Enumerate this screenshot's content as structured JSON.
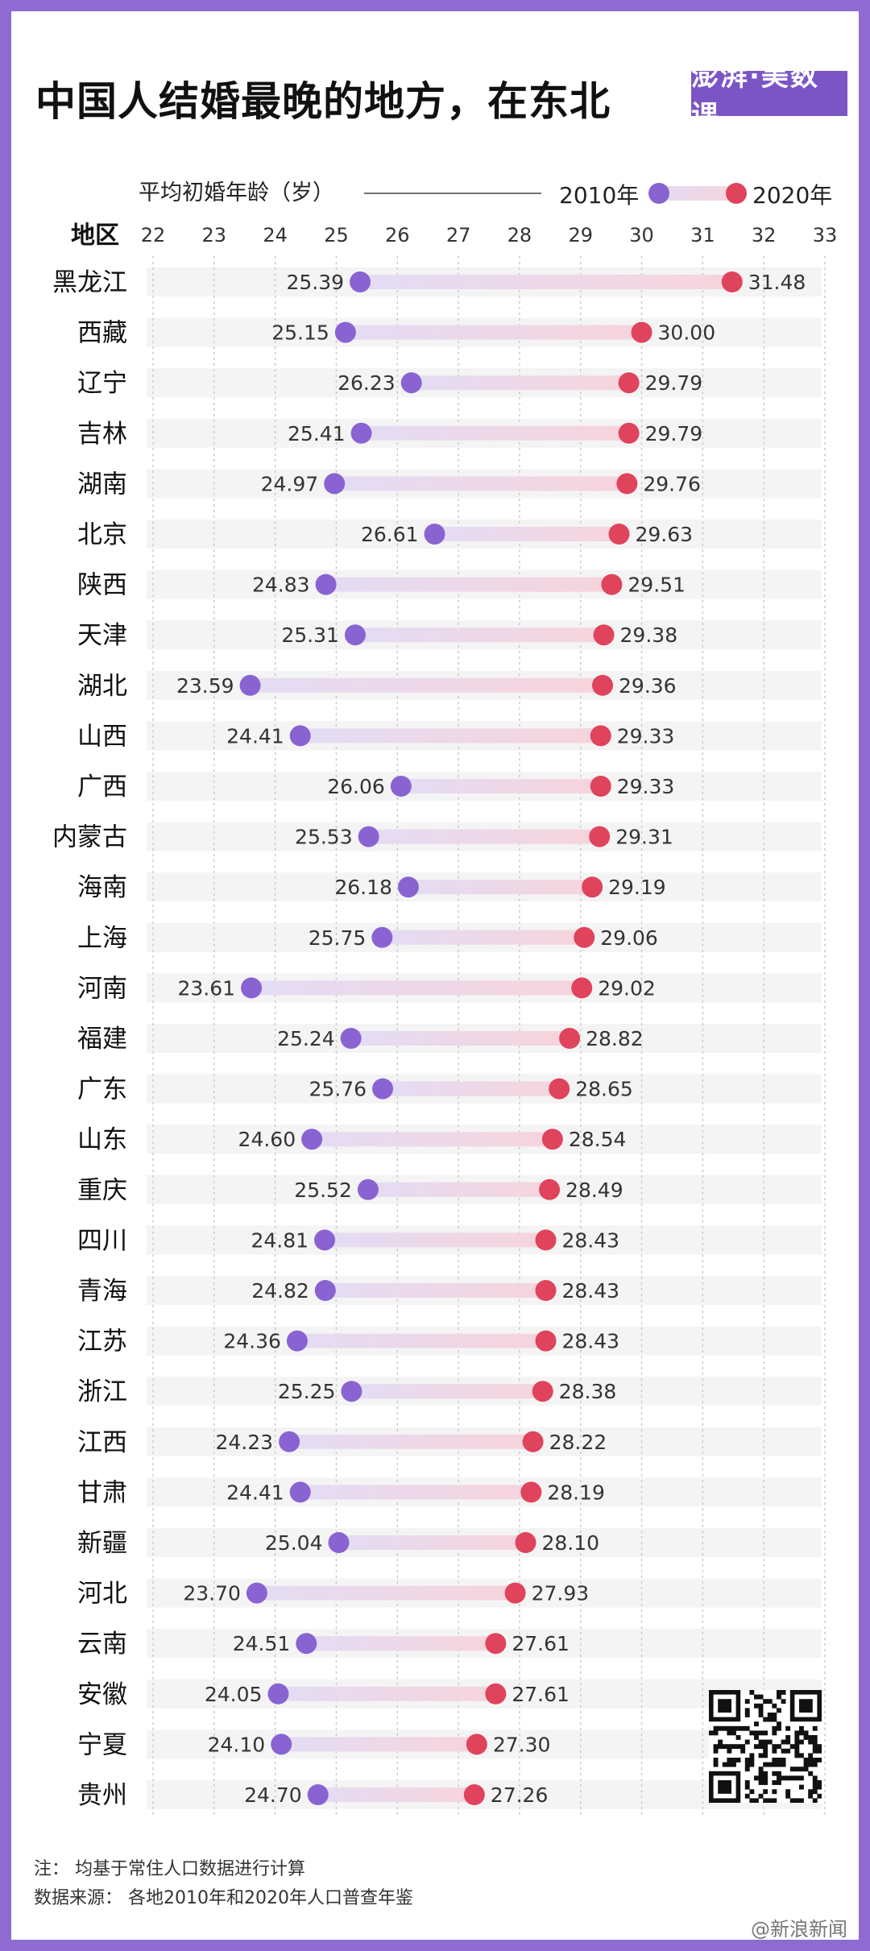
{
  "header": {
    "title": "中国人结婚最晚的地方，在东北",
    "logo_text": "澎湃·美数课"
  },
  "footer": {
    "note": "注：  均基于常住人口数据进行计算",
    "source": "数据来源：  各地2010年和2020年人口普查年鉴",
    "watermark": "@新浪新闻"
  },
  "chart_data": {
    "type": "dumbbell",
    "ylabel": "地区",
    "xlabel": "平均初婚年龄（岁）",
    "xlim": [
      22,
      33
    ],
    "x_ticks": [
      22,
      23,
      24,
      25,
      26,
      27,
      28,
      29,
      30,
      31,
      32,
      33
    ],
    "legend": {
      "placement": "top-right",
      "entries": [
        "2010年",
        "2020年"
      ]
    },
    "colors": {
      "2010": "#8a63d2",
      "2020": "#e0435c"
    },
    "categories": [
      "黑龙江",
      "西藏",
      "辽宁",
      "吉林",
      "湖南",
      "北京",
      "陕西",
      "天津",
      "湖北",
      "山西",
      "广西",
      "内蒙古",
      "海南",
      "上海",
      "河南",
      "福建",
      "广东",
      "山东",
      "重庆",
      "四川",
      "青海",
      "江苏",
      "浙江",
      "江西",
      "甘肃",
      "新疆",
      "河北",
      "云南",
      "安徽",
      "宁夏",
      "贵州"
    ],
    "series": [
      {
        "name": "2010年",
        "values": [
          25.39,
          25.15,
          26.23,
          25.41,
          24.97,
          26.61,
          24.83,
          25.31,
          23.59,
          24.41,
          26.06,
          25.53,
          26.18,
          25.75,
          23.61,
          25.24,
          25.76,
          24.6,
          25.52,
          24.81,
          24.82,
          24.36,
          25.25,
          24.23,
          24.41,
          25.04,
          23.7,
          24.51,
          24.05,
          24.1,
          24.7
        ]
      },
      {
        "name": "2020年",
        "values": [
          31.48,
          30.0,
          29.79,
          29.79,
          29.76,
          29.63,
          29.51,
          29.38,
          29.36,
          29.33,
          29.33,
          29.31,
          29.19,
          29.06,
          29.02,
          28.82,
          28.65,
          28.54,
          28.49,
          28.43,
          28.43,
          28.43,
          28.38,
          28.22,
          28.19,
          28.1,
          27.93,
          27.61,
          27.61,
          27.3,
          27.26
        ]
      }
    ]
  }
}
